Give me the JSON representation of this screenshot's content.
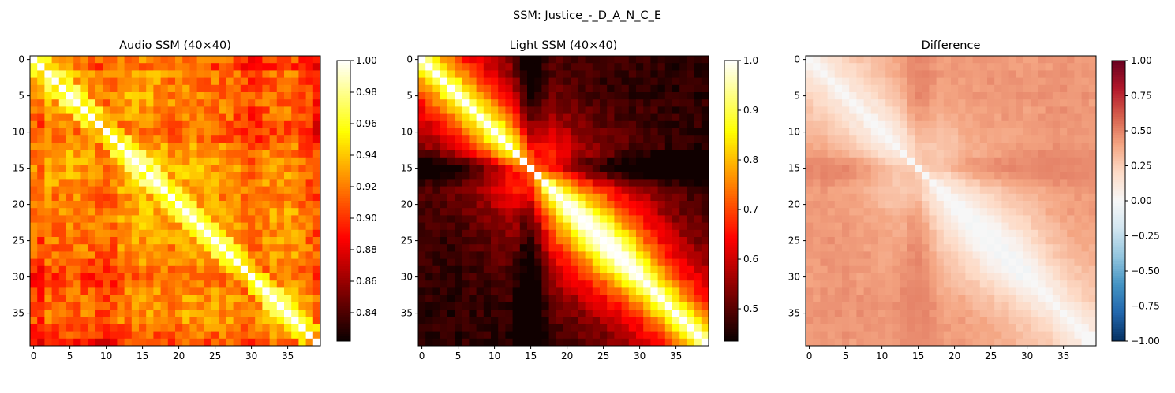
{
  "figure": {
    "suptitle": "SSM: Justice_-_D_A_N_C_E"
  },
  "chart_data": [
    {
      "type": "heatmap",
      "title": "Audio SSM (40×40)",
      "size": 40,
      "colormap": "hot",
      "vmin": 0.822,
      "vmax": 1.0,
      "xticks": [
        0,
        5,
        10,
        15,
        20,
        25,
        30,
        35
      ],
      "yticks": [
        0,
        5,
        10,
        15,
        20,
        25,
        30,
        35
      ],
      "colorbar_ticks": [
        0.84,
        0.86,
        0.88,
        0.9,
        0.92,
        0.94,
        0.96,
        0.98,
        1.0
      ],
      "colorbar_labels": [
        "0.84",
        "0.86",
        "0.88",
        "0.90",
        "0.92",
        "0.94",
        "0.96",
        "0.98",
        "1.00"
      ],
      "description": "Bright diagonal; mostly values 0.88-0.96 with darker bands near rows/cols 0-2, 8-12, 28-32 and 37-39"
    },
    {
      "type": "heatmap",
      "title": "Light SSM (40×40)",
      "size": 40,
      "colormap": "hot",
      "vmin": 0.435,
      "vmax": 1.0,
      "xticks": [
        0,
        5,
        10,
        15,
        20,
        25,
        30,
        35
      ],
      "yticks": [
        0,
        5,
        10,
        15,
        20,
        25,
        30,
        35
      ],
      "colorbar_ticks": [
        0.5,
        0.6,
        0.7,
        0.8,
        0.9,
        1.0
      ],
      "colorbar_labels": [
        "0.5",
        "0.6",
        "0.7",
        "0.8",
        "0.9",
        "1.0"
      ],
      "description": "Broad bright diagonal band decaying away from diagonal; darkest around column 15 and row 15 (~0.45)"
    },
    {
      "type": "heatmap",
      "title": "Difference",
      "size": 40,
      "colormap": "RdBu_r",
      "vmin": -1.0,
      "vmax": 1.0,
      "xticks": [
        0,
        5,
        10,
        15,
        20,
        25,
        30,
        35
      ],
      "yticks": [
        0,
        5,
        10,
        15,
        20,
        25,
        30,
        35
      ],
      "colorbar_ticks": [
        -1.0,
        -0.75,
        -0.5,
        -0.25,
        0.0,
        0.25,
        0.5,
        0.75,
        1.0
      ],
      "colorbar_labels": [
        "−1.00",
        "−0.75",
        "−0.50",
        "−0.25",
        "0.00",
        "0.25",
        "0.50",
        "0.75",
        "1.00"
      ],
      "description": "Audio minus Light: near 0 on diagonal, mostly light positive (~0.1-0.45), strongest around row/col 15"
    }
  ],
  "colors": {
    "hot": [
      "#0a0000",
      "#ff0000",
      "#ffff00",
      "#ffffff"
    ],
    "rdbu_r": [
      "#053061",
      "#2166ac",
      "#4393c3",
      "#92c5de",
      "#d1e5f0",
      "#f7f7f7",
      "#fddbc7",
      "#f4a582",
      "#d6604d",
      "#b2182b",
      "#67001f"
    ]
  }
}
